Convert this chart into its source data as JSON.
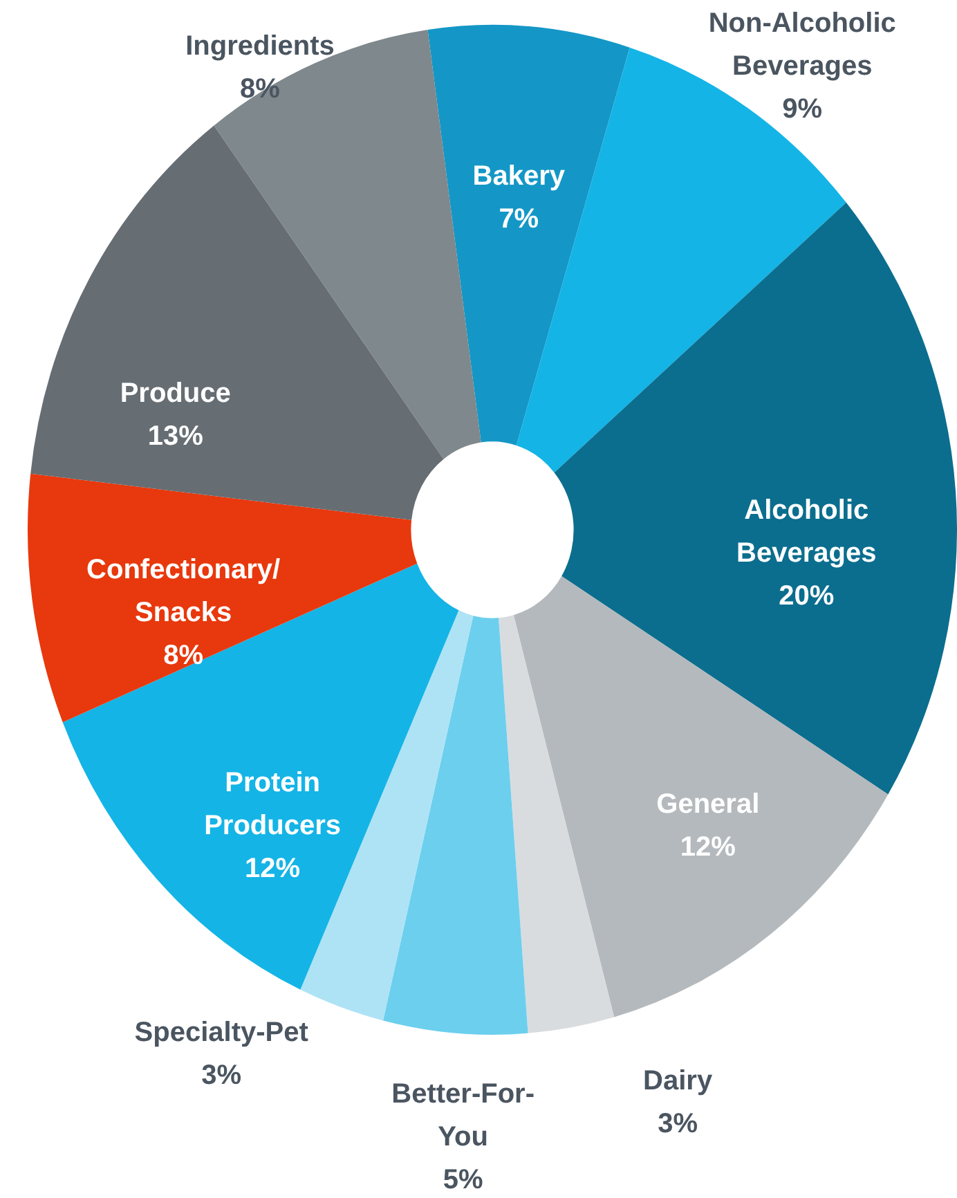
{
  "chart_data": {
    "type": "pie",
    "categories": [
      "Bakery",
      "Non-Alcoholic Beverages",
      "Alcoholic Beverages",
      "General",
      "Dairy",
      "Better-For-You",
      "Specialty-Pet",
      "Protein Producers",
      "Confectionary/Snacks",
      "Produce",
      "Ingredients"
    ],
    "values": [
      7,
      9,
      20,
      12,
      3,
      5,
      3,
      12,
      8,
      13,
      8
    ],
    "value_labels": [
      "7%",
      "9%",
      "20%",
      "12%",
      "3%",
      "5%",
      "3%",
      "12%",
      "8%",
      "13%",
      "8%"
    ],
    "colors": [
      "#1497c6",
      "#14b4e6",
      "#0b6e8e",
      "#b4b9bd",
      "#d9dcdf",
      "#6ccfee",
      "#aee3f5",
      "#14b4e6",
      "#e8380d",
      "#666d73",
      "#7f888c"
    ]
  }
}
